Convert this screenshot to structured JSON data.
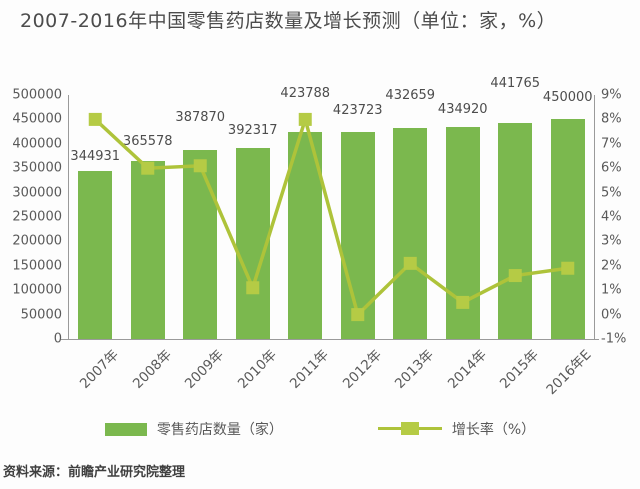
{
  "title": "2007-2016年中国零售药店数量及增长预测（单位：家，%）",
  "source": "资料来源：前瞻产业研究院整理",
  "chart_data": {
    "type": "bar",
    "subtype": "bar-with-line-overlay",
    "categories": [
      "2007年",
      "2008年",
      "2009年",
      "2010年",
      "2011年",
      "2012年",
      "2013年",
      "2014年",
      "2015年",
      "2016年E"
    ],
    "series": [
      {
        "name": "零售药店数量（家）",
        "type": "bar",
        "axis": "left",
        "color": "#7bb84e",
        "values": [
          344931,
          365578,
          387870,
          392317,
          423788,
          423723,
          432659,
          434920,
          441765,
          450000
        ]
      },
      {
        "name": "增长率（%）",
        "type": "line",
        "axis": "right",
        "color": "#aec33a",
        "marker_color": "#b5cb45",
        "values": [
          8.0,
          6.0,
          6.1,
          1.1,
          8.0,
          0.0,
          2.1,
          0.5,
          1.6,
          1.9
        ]
      }
    ],
    "left_axis": {
      "min": 0,
      "max": 500000,
      "step": 50000,
      "tick_labels": [
        "500000",
        "450000",
        "400000",
        "350000",
        "300000",
        "250000",
        "200000",
        "150000",
        "100000",
        "50000",
        "0"
      ]
    },
    "right_axis": {
      "min": -1,
      "max": 9,
      "step": 1,
      "tick_labels": [
        "9%",
        "8%",
        "7%",
        "6%",
        "5%",
        "4%",
        "3%",
        "2%",
        "1%",
        "0%",
        "-1%"
      ]
    },
    "grid": false,
    "legend_position": "bottom",
    "bar_value_labels_visible": true
  },
  "colors": {
    "bar": "#7bb84e",
    "line": "#aec33a",
    "marker": "#b5cb45",
    "axis_text": "#595959",
    "title_text": "#4c4c4c",
    "axis_line": "#9a9a9a"
  }
}
